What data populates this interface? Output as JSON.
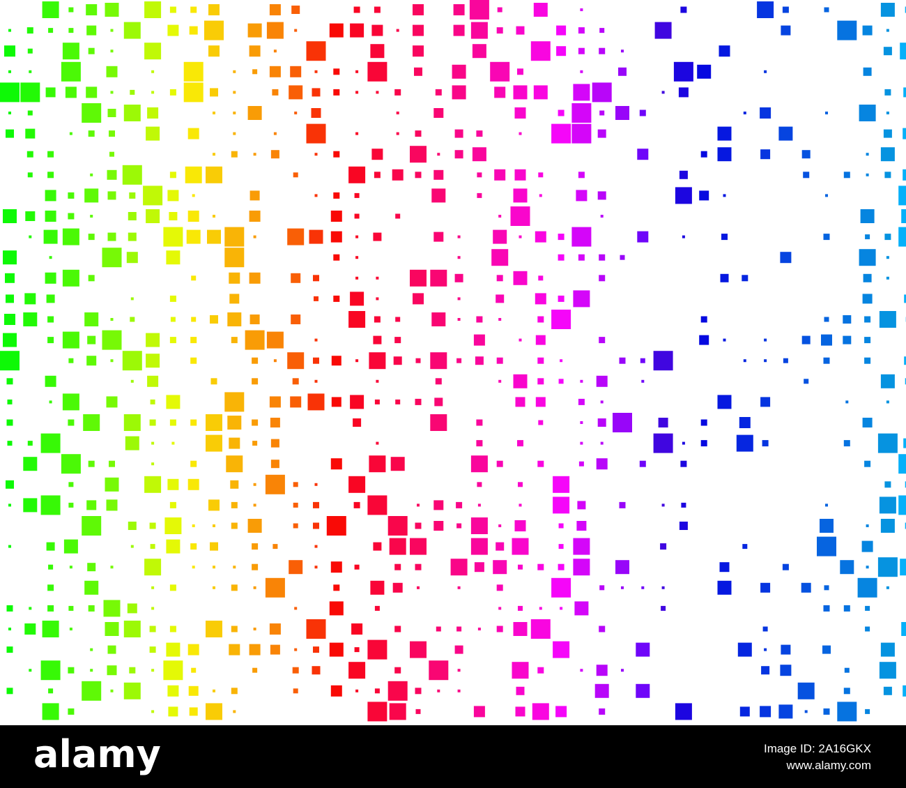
{
  "watermark": {
    "logo": "alamy",
    "image_id": "Image ID: 2A16GKX",
    "url": "www.alamy.com"
  }
}
